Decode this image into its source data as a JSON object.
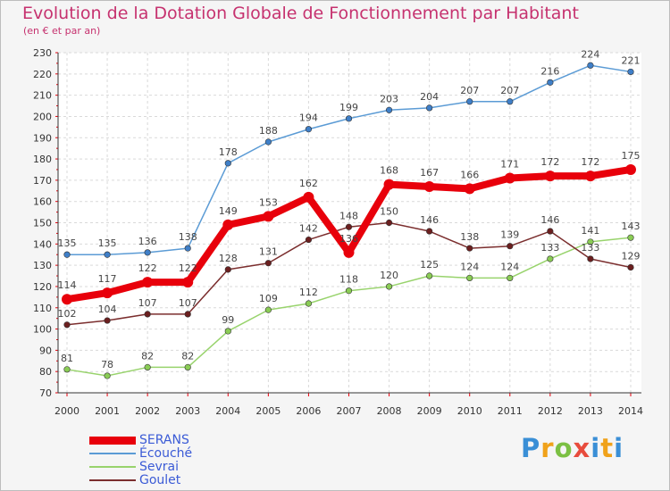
{
  "title": "Evolution de la Dotation Globale de Fonctionnement par Habitant",
  "subtitle": "(en € et par an)",
  "logo": {
    "text": "Proxiti"
  },
  "chart_data": {
    "type": "line",
    "title": "Evolution de la Dotation Globale de Fonctionnement par Habitant",
    "subtitle": "(en € et par an)",
    "x": [
      "2000",
      "2001",
      "2002",
      "2003",
      "2004",
      "2005",
      "2006",
      "2007",
      "2008",
      "2009",
      "2010",
      "2011",
      "2012",
      "2013",
      "2014"
    ],
    "ylim": [
      70,
      230
    ],
    "yticks": [
      70,
      80,
      90,
      100,
      110,
      120,
      130,
      140,
      150,
      160,
      170,
      180,
      190,
      200,
      210,
      220,
      230
    ],
    "grid": true,
    "legend_placement": "bottom-left",
    "series": [
      {
        "name": "SERANS",
        "color": "#e8000b",
        "marker": "#e8000b",
        "thick": true,
        "values": [
          114,
          117,
          122,
          122,
          149,
          153,
          162,
          136,
          168,
          167,
          166,
          171,
          172,
          172,
          175
        ]
      },
      {
        "name": "Écouché",
        "color": "#5b9bd5",
        "marker": "#3f7fc8",
        "thick": false,
        "values": [
          135,
          135,
          136,
          138,
          178,
          188,
          194,
          199,
          203,
          204,
          207,
          207,
          216,
          224,
          221
        ]
      },
      {
        "name": "Sevrai",
        "color": "#98d36c",
        "marker": "#8acc55",
        "thick": false,
        "values": [
          81,
          78,
          82,
          82,
          99,
          109,
          112,
          118,
          120,
          125,
          124,
          124,
          133,
          141,
          143
        ]
      },
      {
        "name": "Goulet",
        "color": "#7b2e2e",
        "marker": "#6b1f1f",
        "thick": false,
        "values": [
          102,
          104,
          107,
          107,
          128,
          131,
          142,
          148,
          150,
          146,
          138,
          139,
          146,
          133,
          129
        ]
      }
    ]
  }
}
